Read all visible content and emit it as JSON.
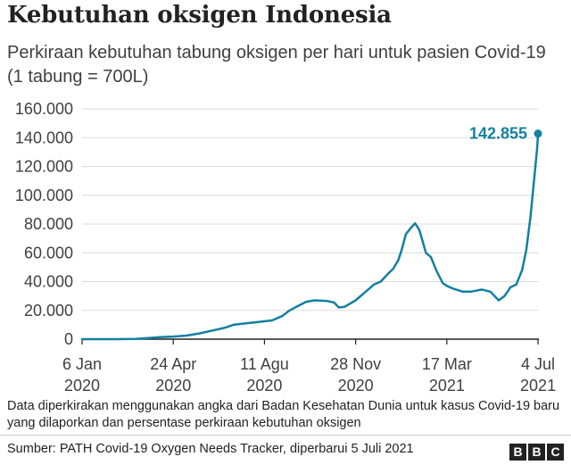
{
  "title": "Kebutuhan oksigen Indonesia",
  "subtitle": "Perkiraan kebutuhan tabung oksigen per hari untuk pasien Covid-19 (1 tabung = 700L)",
  "note": "Data diperkirakan menggunakan angka dari Badan Kesehatan Dunia untuk kasus Covid-19 baru yang dilaporkan dan persentase perkiraan kebutuhan oksigen",
  "source": "Sumber: PATH Covid-19 Oxygen Needs Tracker, diperbarui 5 Juli 2021",
  "logo": [
    "B",
    "B",
    "C"
  ],
  "colors": {
    "line": "#1380a1",
    "grid": "#dcdcdc",
    "axis": "#222222",
    "text": "#404040"
  },
  "chart_data": {
    "type": "line",
    "title": "Kebutuhan oksigen Indonesia",
    "subtitle": "Perkiraan kebutuhan tabung oksigen per hari untuk pasien Covid-19 (1 tabung = 700L)",
    "xlabel": "",
    "ylabel": "",
    "ylim": [
      0,
      160000
    ],
    "xlim": [
      "2020-01-06",
      "2021-07-05"
    ],
    "grid": "horizontal",
    "yticks": [
      {
        "value": 0,
        "label": "0"
      },
      {
        "value": 20000,
        "label": "20.000"
      },
      {
        "value": 40000,
        "label": "40.000"
      },
      {
        "value": 60000,
        "label": "60.000"
      },
      {
        "value": 80000,
        "label": "80.000"
      },
      {
        "value": 100000,
        "label": "100.000"
      },
      {
        "value": 120000,
        "label": "120.000"
      },
      {
        "value": 140000,
        "label": "140.000"
      },
      {
        "value": 160000,
        "label": "160.000"
      }
    ],
    "xticks": [
      {
        "date": "2020-01-06",
        "line1": "6 Jan",
        "line2": "2020"
      },
      {
        "date": "2020-04-24",
        "line1": "24 Apr",
        "line2": "2020"
      },
      {
        "date": "2020-08-11",
        "line1": "11 Agu",
        "line2": "2020"
      },
      {
        "date": "2020-11-28",
        "line1": "28 Nov",
        "line2": "2020"
      },
      {
        "date": "2021-03-17",
        "line1": "17 Mar",
        "line2": "2021"
      },
      {
        "date": "2021-07-04",
        "line1": "4 Jul",
        "line2": "2021"
      }
    ],
    "series": [
      {
        "color": "#1380a1",
        "points": [
          [
            "2020-01-06",
            0
          ],
          [
            "2020-02-15",
            0
          ],
          [
            "2020-03-10",
            200
          ],
          [
            "2020-03-25",
            800
          ],
          [
            "2020-04-10",
            1500
          ],
          [
            "2020-04-24",
            1800
          ],
          [
            "2020-05-10",
            2500
          ],
          [
            "2020-05-25",
            4000
          ],
          [
            "2020-06-10",
            6000
          ],
          [
            "2020-06-25",
            8000
          ],
          [
            "2020-07-05",
            10000
          ],
          [
            "2020-07-20",
            11000
          ],
          [
            "2020-08-05",
            12000
          ],
          [
            "2020-08-20",
            13000
          ],
          [
            "2020-09-01",
            16000
          ],
          [
            "2020-09-10",
            20000
          ],
          [
            "2020-09-20",
            23000
          ],
          [
            "2020-09-30",
            26000
          ],
          [
            "2020-10-10",
            27000
          ],
          [
            "2020-10-25",
            26500
          ],
          [
            "2020-11-02",
            25500
          ],
          [
            "2020-11-08",
            22000
          ],
          [
            "2020-11-15",
            22500
          ],
          [
            "2020-11-28",
            27000
          ],
          [
            "2020-12-08",
            32000
          ],
          [
            "2020-12-20",
            38000
          ],
          [
            "2020-12-28",
            40000
          ],
          [
            "2021-01-05",
            45000
          ],
          [
            "2021-01-12",
            49000
          ],
          [
            "2021-01-18",
            55000
          ],
          [
            "2021-01-22",
            62000
          ],
          [
            "2021-01-27",
            73000
          ],
          [
            "2021-02-03",
            78000
          ],
          [
            "2021-02-07",
            80500
          ],
          [
            "2021-02-12",
            76000
          ],
          [
            "2021-02-16",
            68000
          ],
          [
            "2021-02-20",
            60000
          ],
          [
            "2021-02-26",
            57000
          ],
          [
            "2021-03-05",
            47000
          ],
          [
            "2021-03-12",
            39000
          ],
          [
            "2021-03-17",
            37000
          ],
          [
            "2021-03-25",
            35000
          ],
          [
            "2021-04-05",
            33000
          ],
          [
            "2021-04-15",
            33000
          ],
          [
            "2021-04-28",
            34500
          ],
          [
            "2021-05-08",
            33000
          ],
          [
            "2021-05-13",
            30000
          ],
          [
            "2021-05-18",
            27000
          ],
          [
            "2021-05-25",
            30000
          ],
          [
            "2021-06-01",
            36000
          ],
          [
            "2021-06-08",
            38000
          ],
          [
            "2021-06-15",
            48000
          ],
          [
            "2021-06-20",
            62000
          ],
          [
            "2021-06-25",
            85000
          ],
          [
            "2021-06-30",
            115000
          ],
          [
            "2021-07-03",
            133000
          ],
          [
            "2021-07-04",
            142855
          ]
        ]
      }
    ],
    "annotations": [
      {
        "date": "2021-07-04",
        "value": 142855,
        "label": "142.855"
      }
    ]
  }
}
